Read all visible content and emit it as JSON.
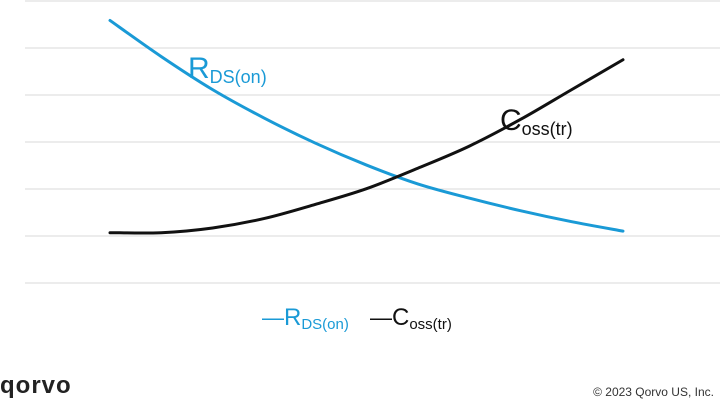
{
  "chart_data": {
    "type": "line",
    "title": "",
    "xlabel": "",
    "ylabel": "",
    "grid": true,
    "x": [
      0,
      0.1,
      0.2,
      0.3,
      0.4,
      0.5,
      0.6,
      0.7,
      0.8,
      0.9,
      1.0
    ],
    "series": [
      {
        "name": "RDS(on)",
        "label_main": "R",
        "label_sub": "DS(on)",
        "color": "#1a9ad6",
        "values": [
          8.35,
          7.2,
          6.15,
          5.25,
          4.45,
          3.75,
          3.15,
          2.7,
          2.3,
          1.95,
          1.65
        ]
      },
      {
        "name": "Coss(tr)",
        "label_main": "C",
        "label_sub": "oss(tr)",
        "color": "#111111",
        "values": [
          1.6,
          1.6,
          1.75,
          2.05,
          2.5,
          3.0,
          3.65,
          4.35,
          5.2,
          6.15,
          7.1
        ]
      }
    ],
    "legend": {
      "placement": "bottom-center",
      "items": [
        {
          "marker": "—",
          "main": "R",
          "sub": "DS(on)",
          "color": "#1a9ad6"
        },
        {
          "marker": "—",
          "main": "C",
          "sub": "oss(tr)",
          "color": "#111111"
        }
      ]
    }
  },
  "footer": {
    "logo": "qorvo",
    "copyright": "© 2023 Qorvo US, Inc."
  }
}
